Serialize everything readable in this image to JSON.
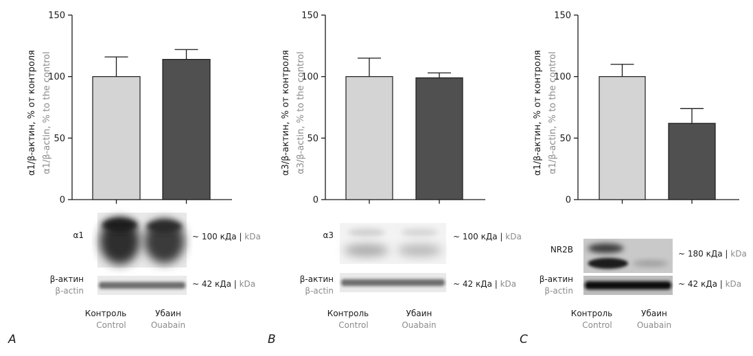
{
  "colors": {
    "control": "#d4d4d4",
    "ouabain": "#505050",
    "axis": "#1a1a1a",
    "secondary_text": "#8a8a8a"
  },
  "chart_data": [
    {
      "type": "bar",
      "panel_letter": "A",
      "categories_ru": [
        "Контроль",
        "Убаин"
      ],
      "categories_en": [
        "Control",
        "Ouabain"
      ],
      "values": [
        100,
        114
      ],
      "errors": [
        16,
        8
      ],
      "ylim": [
        0,
        150
      ],
      "yticks": [
        "0",
        "50",
        "100",
        "150"
      ],
      "ylabel_ru": "α1/β-актин, % от контроля",
      "ylabel_en": "α1/β-actin, % to the control",
      "blot": {
        "target_label": "α1",
        "target_size_ru": "~ 100 кДа",
        "target_size_en": "kDa",
        "loading_label_ru": "β-актин",
        "loading_label_en": "β-actin",
        "loading_size_ru": "~ 42 кДа",
        "loading_size_en": "kDa"
      }
    },
    {
      "type": "bar",
      "panel_letter": "B",
      "categories_ru": [
        "Контроль",
        "Убаин"
      ],
      "categories_en": [
        "Control",
        "Ouabain"
      ],
      "values": [
        100,
        99
      ],
      "errors": [
        15,
        4
      ],
      "ylim": [
        0,
        150
      ],
      "yticks": [
        "0",
        "50",
        "100",
        "150"
      ],
      "ylabel_ru": "α3/β-актин, % от контроля",
      "ylabel_en": "α3/β-actin, % to the control",
      "blot": {
        "target_label": "α3",
        "target_size_ru": "~ 100 кДа",
        "target_size_en": "kDa",
        "loading_label_ru": "β-актин",
        "loading_label_en": "β-actin",
        "loading_size_ru": "~ 42 кДа",
        "loading_size_en": "kDa"
      }
    },
    {
      "type": "bar",
      "panel_letter": "C",
      "categories_ru": [
        "Контроль",
        "Убаин"
      ],
      "categories_en": [
        "Control",
        "Ouabain"
      ],
      "values": [
        100,
        62
      ],
      "errors": [
        10,
        12
      ],
      "ylim": [
        0,
        150
      ],
      "yticks": [
        "0",
        "50",
        "100",
        "150"
      ],
      "ylabel_ru": "α1/β-актин, % от контроля",
      "ylabel_en": "α1/β-actin, % to the control",
      "blot": {
        "target_label": "NR2B",
        "target_size_ru": "~ 180 кДа",
        "target_size_en": "kDa",
        "loading_label_ru": "β-актин",
        "loading_label_en": "β-actin",
        "loading_size_ru": "~ 42 кДа",
        "loading_size_en": "kDa"
      }
    }
  ]
}
